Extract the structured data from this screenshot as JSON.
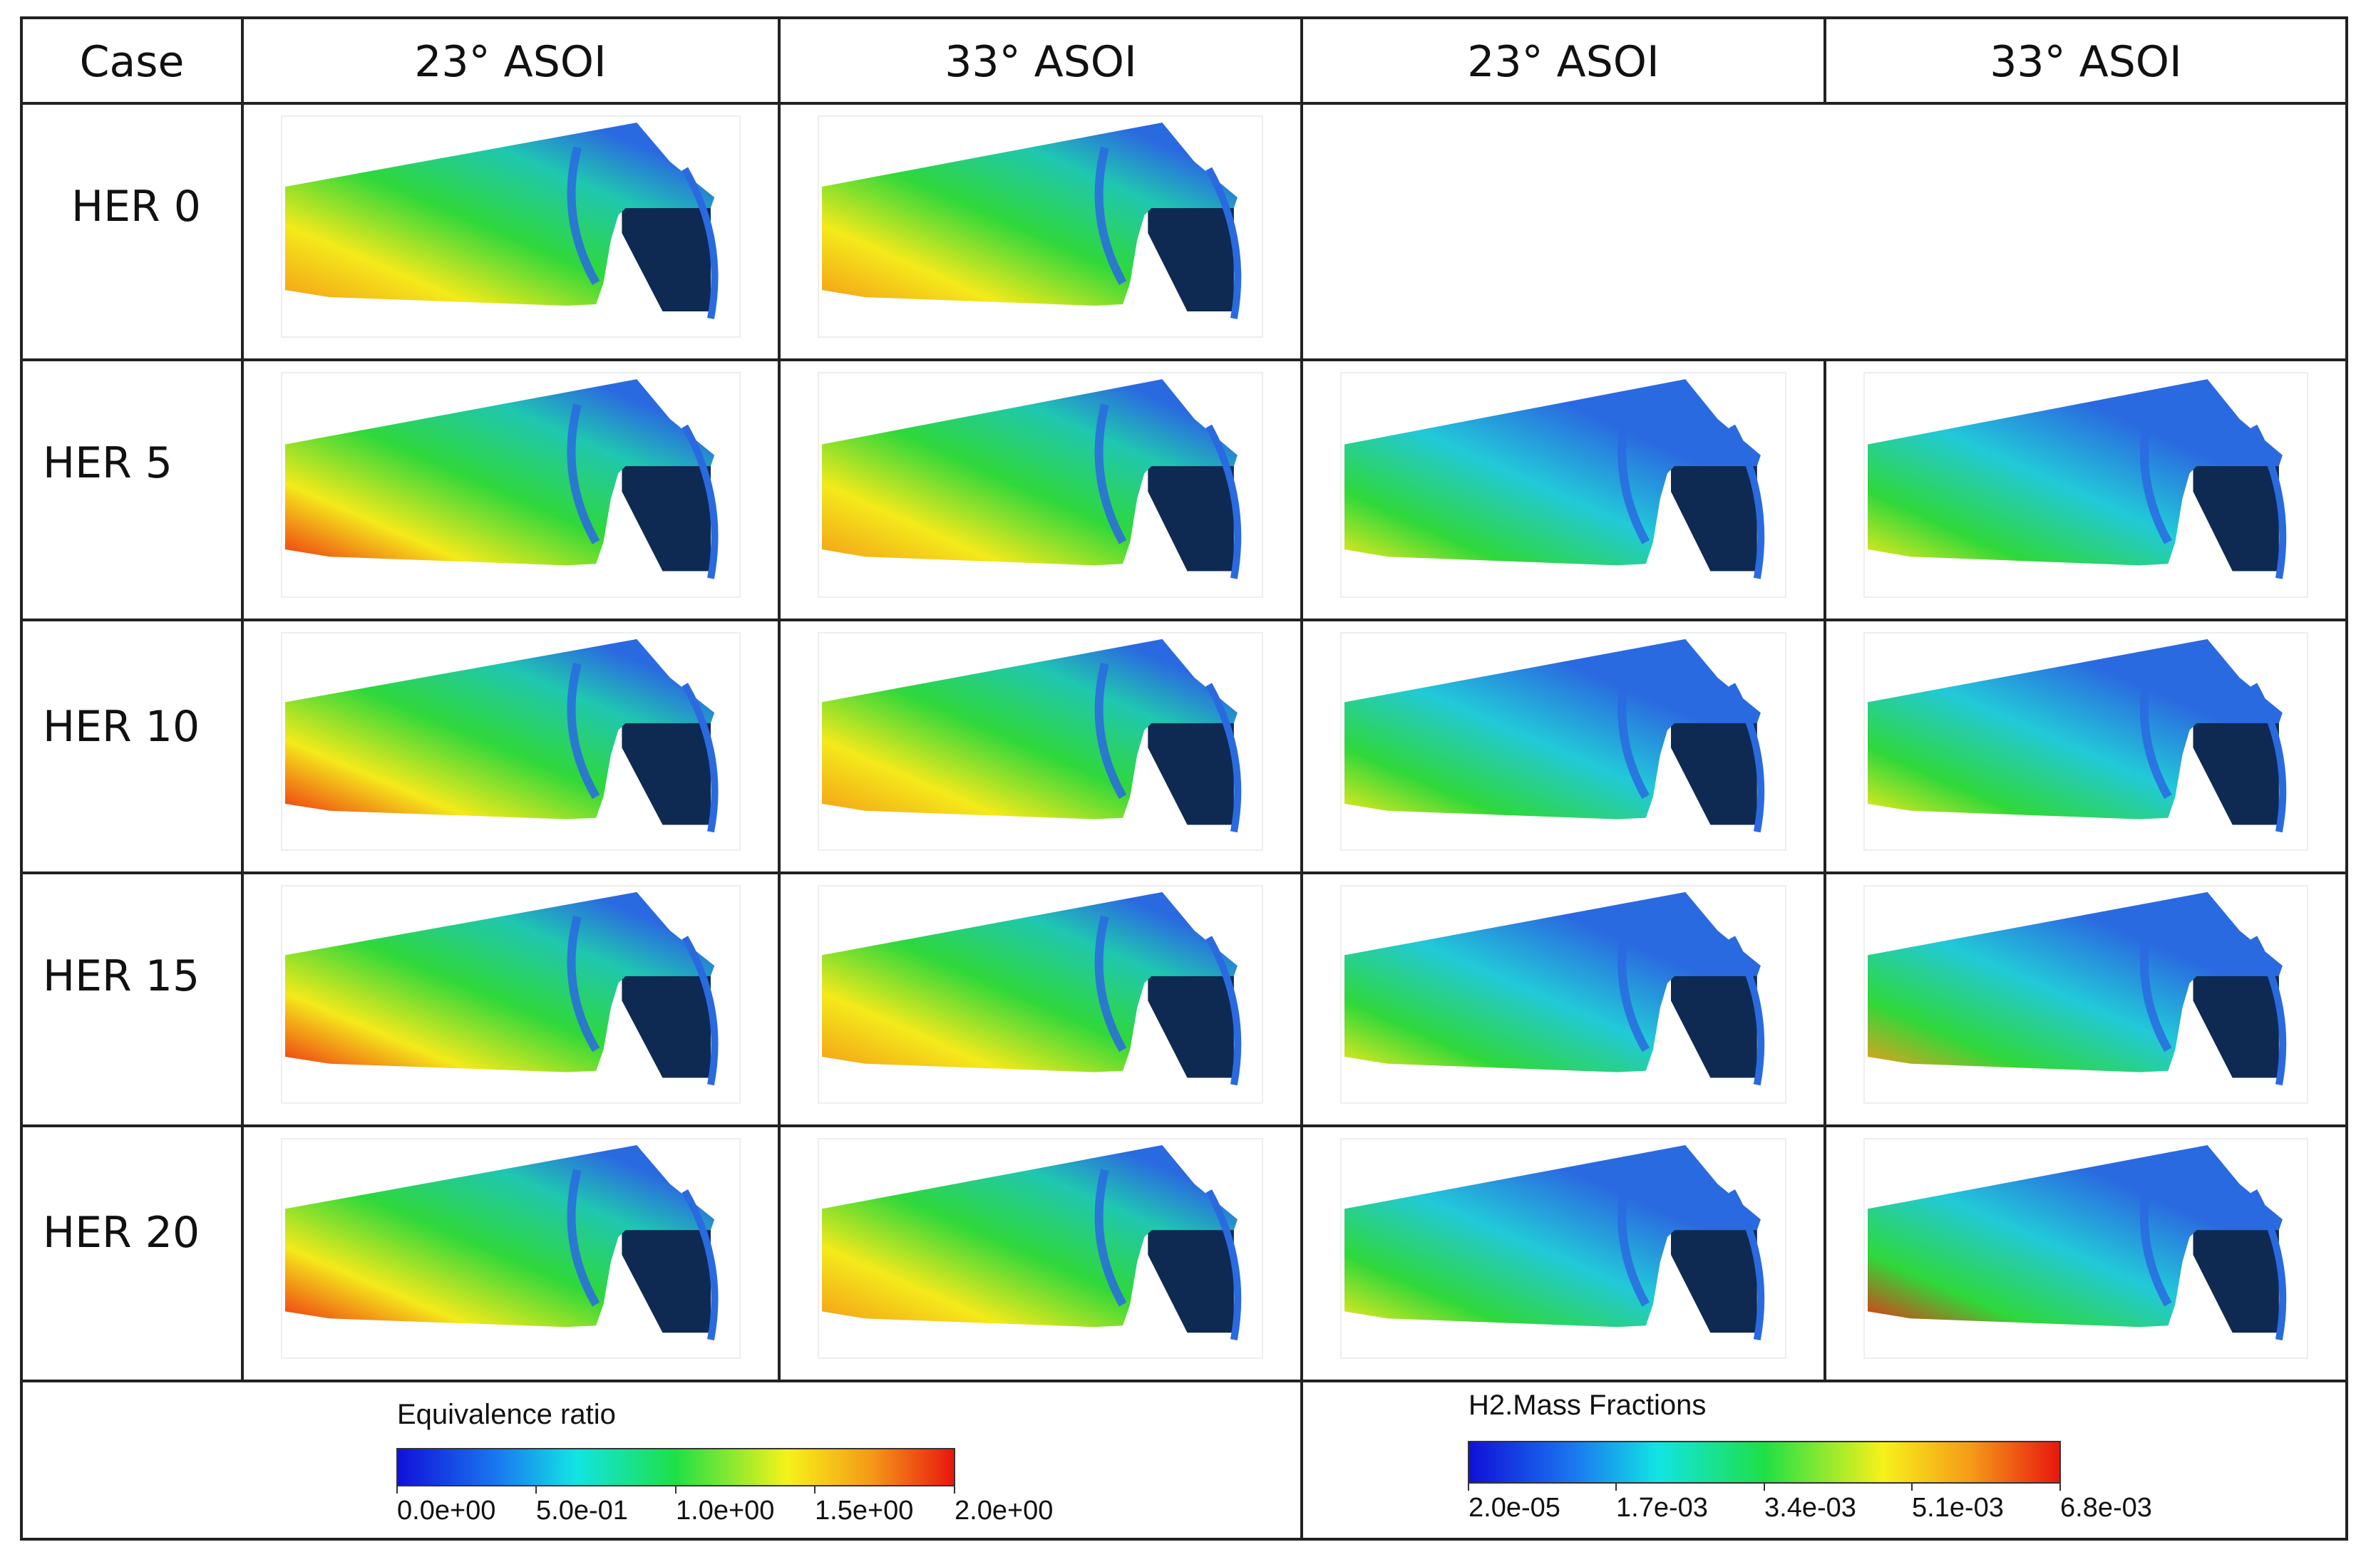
{
  "headers": [
    "Case",
    "23° ASOI",
    "33° ASOI",
    "23° ASOI",
    "33° ASOI"
  ],
  "rows": [
    {
      "label": "HER 0",
      "phi": [
        {
          "hot": 0.9
        },
        {
          "hot": 0.82
        }
      ],
      "h2": []
    },
    {
      "label": "HER 5",
      "phi": [
        {
          "hot": 0.95
        },
        {
          "hot": 0.85
        }
      ],
      "h2": [
        {
          "hot": 0.55
        },
        {
          "hot": 0.7
        }
      ]
    },
    {
      "label": "HER 10",
      "phi": [
        {
          "hot": 1.0
        },
        {
          "hot": 0.85
        }
      ],
      "h2": [
        {
          "hot": 0.62
        },
        {
          "hot": 0.78
        }
      ]
    },
    {
      "label": "HER 15",
      "phi": [
        {
          "hot": 1.0
        },
        {
          "hot": 0.85
        }
      ],
      "h2": [
        {
          "hot": 0.66
        },
        {
          "hot": 0.88
        }
      ]
    },
    {
      "label": "HER 20",
      "phi": [
        {
          "hot": 1.0
        },
        {
          "hot": 0.88
        }
      ],
      "h2": [
        {
          "hot": 0.75
        },
        {
          "hot": 1.0
        }
      ]
    }
  ],
  "legend_phi": {
    "title": "Equivalence ratio",
    "ticks": [
      "0.0e+00",
      "5.0e-01",
      "1.0e+00",
      "1.5e+00",
      "2.0e+00"
    ]
  },
  "legend_h2": {
    "title": "H2.Mass Fractions",
    "ticks": [
      "2.0e-05",
      "1.7e-03",
      "3.4e-03",
      "5.1e-03",
      "6.8e-03"
    ]
  },
  "colors": {
    "cold": "#2a6ae0",
    "mid_green": "#2fd83a",
    "yellow": "#f4ea1a",
    "orange": "#f59a18",
    "hot": "#ee2b12",
    "shadow": "#0f2a52",
    "grid": "#222222"
  }
}
